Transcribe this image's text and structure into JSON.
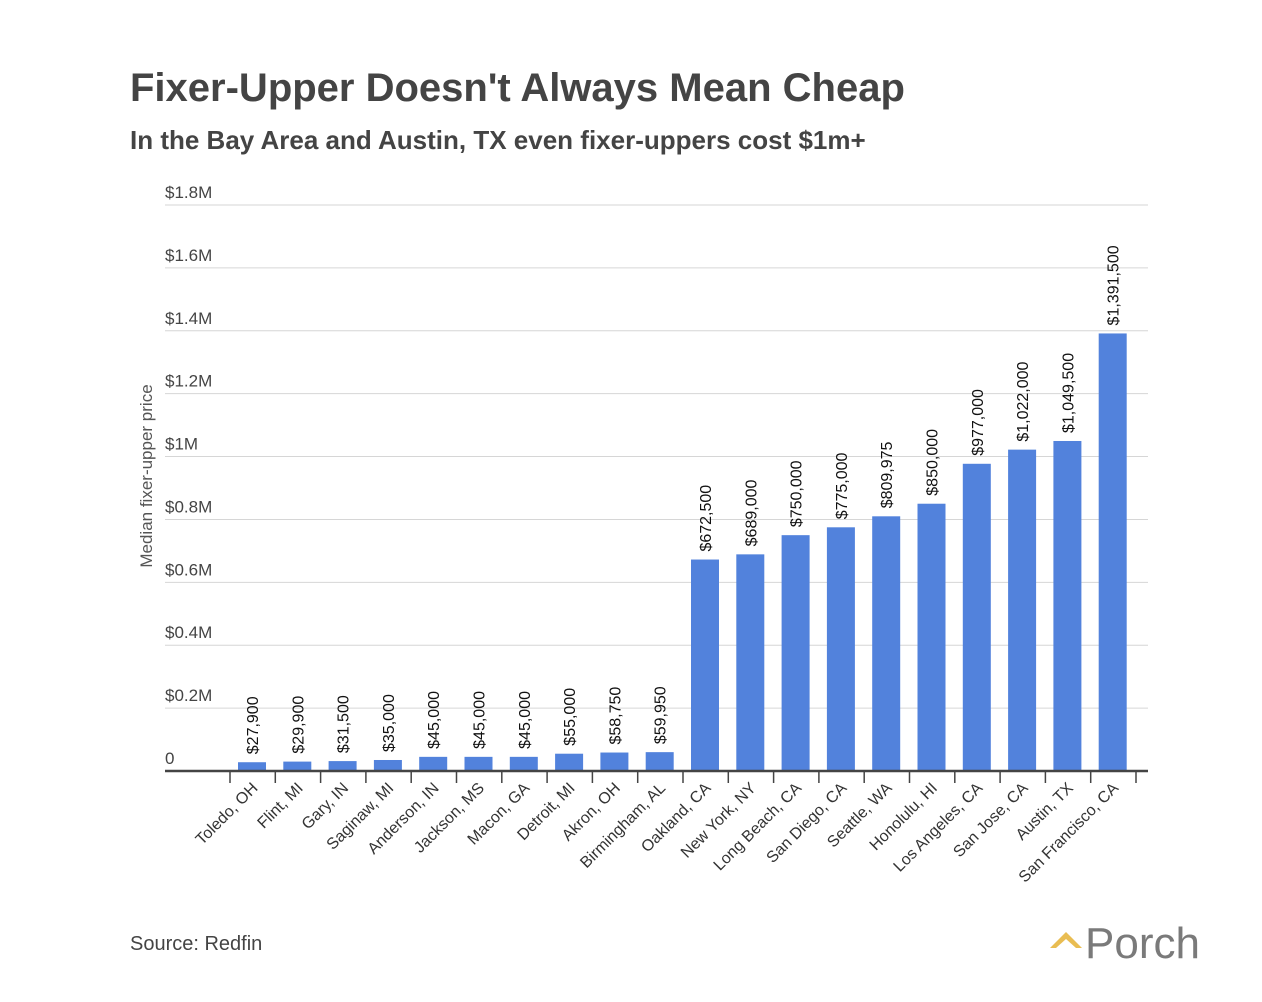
{
  "chart_data": {
    "type": "bar",
    "title": "Fixer-Upper Doesn't Always Mean Cheap",
    "subtitle": "In the Bay Area and Austin, TX even fixer-uppers cost $1m+",
    "xlabel": "",
    "ylabel": "Median fixer-upper price",
    "ylim": [
      0,
      1800000
    ],
    "yticks": [
      0,
      200000,
      400000,
      600000,
      800000,
      1000000,
      1200000,
      1400000,
      1600000,
      1800000
    ],
    "ytick_labels": [
      "0",
      "$0.2M",
      "$0.4M",
      "$0.6M",
      "$0.8M",
      "$1M",
      "$1.2M",
      "$1.4M",
      "$1.6M",
      "$1.8M"
    ],
    "grid": true,
    "categories": [
      "Toledo, OH",
      "Flint, MI",
      "Gary, IN",
      "Saginaw, MI",
      "Anderson, IN",
      "Jackson, MS",
      "Macon, GA",
      "Detroit, MI",
      "Akron, OH",
      "Birmingham, AL",
      "Oakland, CA",
      "New York, NY",
      "Long Beach, CA",
      "San Diego, CA",
      "Seattle, WA",
      "Honolulu, HI",
      "Los Angeles, CA",
      "San Jose, CA",
      "Austin, TX",
      "San Francisco, CA"
    ],
    "values": [
      27900,
      29900,
      31500,
      35000,
      45000,
      45000,
      45000,
      55000,
      58750,
      59950,
      672500,
      689000,
      750000,
      775000,
      809975,
      850000,
      977000,
      1022000,
      1049500,
      1391500
    ],
    "data_labels": [
      "$27,900",
      "$29,900",
      "$31,500",
      "$35,000",
      "$45,000",
      "$45,000",
      "$45,000",
      "$55,000",
      "$58,750",
      "$59,950",
      "$672,500",
      "$689,000",
      "$750,000",
      "$775,000",
      "$809,975",
      "$850,000",
      "$977,000",
      "$1,022,000",
      "$1,049,500",
      "$1,391,500"
    ],
    "bar_color": "#5282dc"
  },
  "footer": {
    "source": "Source: Redfin",
    "logo_text": "Porch",
    "logo_color": "#e9bd52"
  }
}
